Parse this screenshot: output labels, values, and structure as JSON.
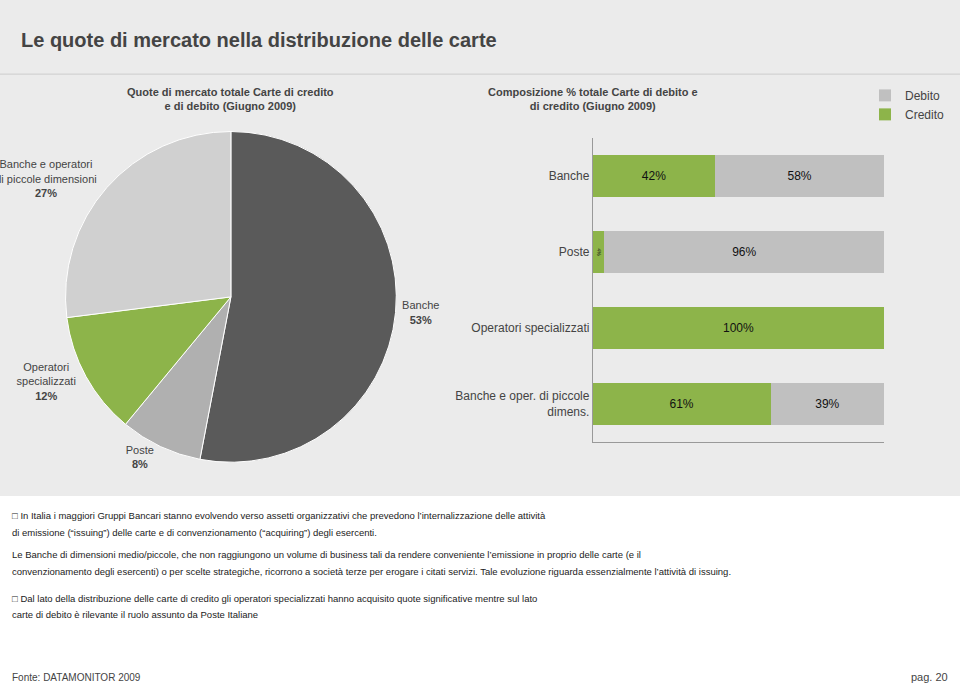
{
  "title": "Le quote di mercato nella distribuzione delle carte",
  "annotations": [
    "□ In Italia i maggiori Gruppi Bancari stanno evolvendo verso assetti organizzativi che prevedono l’internalizzazione delle attività",
    "di emissione (“issuing”) delle carte e di convenzionamento (“acquiring”) degli esercenti.",
    "Le Banche di dimensioni medio/piccole, che non raggiungono un volume di business tali da rendere conveniente l’emissione in proprio delle carte (e il",
    "convenzionamento degli esercenti) o per scelte strategiche, ricorrono a società terze per erogare i citati servizi. Tale evoluzione riguarda essenzialmente l’attività di issuing.",
    "□ Dal lato della distribuzione delle carte di credito gli operatori specializzati hanno acquisito quote significative mentre sul lato",
    "carte di debito è rilevante il ruolo assunto da Poste Italiane",
    "Fonte: DATAMONITOR 2009",
    "pag. 20"
  ],
  "chart_data": [
    {
      "type": "pie",
      "subtitle": "Quote di mercato totale Carte di credito\ne di debito (Giugno 2009)",
      "categories": [
        "Banche",
        "Poste",
        "Operatori\nspecializzati",
        "Banche e operatori\ndi piccole dimensioni"
      ],
      "values": [
        53,
        8,
        12,
        27
      ],
      "value_labels": [
        "53%",
        "8%",
        "12%",
        "27%"
      ],
      "colors": [
        "#5a5a5a",
        "#b0b0b0",
        "#8db44a",
        "#d0d0d0"
      ],
      "data_labels": true
    },
    {
      "type": "bar",
      "subtitle": "Composizione % totale Carte di debito e\ndi credito (Giugno 2009)",
      "orientation": "horizontal",
      "stacked": true,
      "categories": [
        "Banche",
        "Poste",
        "Operatori specializzati",
        "Banche e oper. di piccole\ndimens."
      ],
      "series": [
        {
          "name": "Credito",
          "color": "#8db44a",
          "values": [
            42,
            4,
            100,
            61
          ],
          "value_labels": [
            "42%",
            "4%",
            "100%",
            "61%"
          ]
        },
        {
          "name": "Debito",
          "color": "#c0c0c0",
          "values": [
            58,
            96,
            0,
            39
          ],
          "value_labels": [
            "58%",
            "96%",
            null,
            "39%"
          ]
        }
      ],
      "xlim": [
        0,
        100
      ],
      "tick_labels": "y",
      "grid": false,
      "legend": "upper right",
      "data_labels": true
    }
  ]
}
